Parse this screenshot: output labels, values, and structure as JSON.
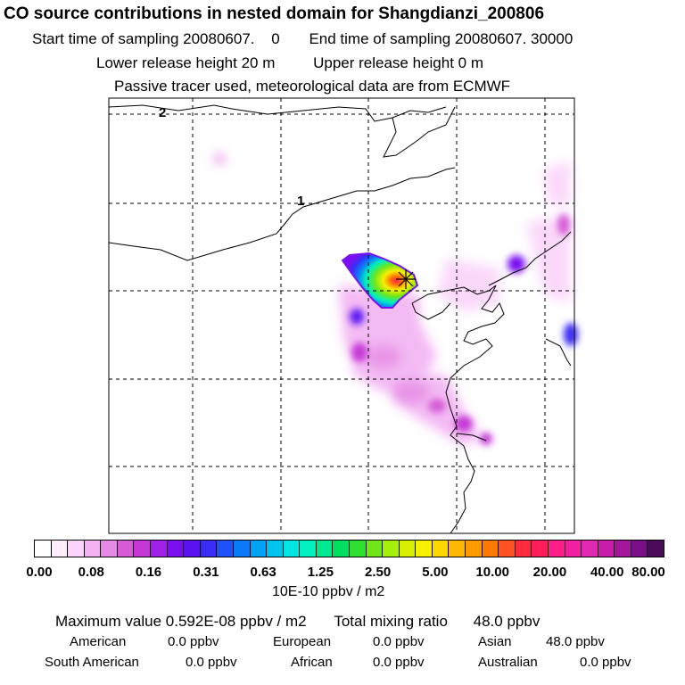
{
  "header": {
    "title": "CO  source contributions in nested domain for Shangdianzi_200806",
    "start_label": "Start time of sampling",
    "start_value": "20080607.",
    "start_hhmmss": "0",
    "end_label": "End time of sampling",
    "end_value": "20080607. 30000",
    "lower_label": "Lower release height",
    "lower_value": "20 m",
    "upper_label": "Upper release height",
    "upper_value": "0 m",
    "note": "Passive tracer used, meteorological data are from ECMWF"
  },
  "map": {
    "border_labels": [
      "2",
      "1"
    ],
    "receptor_marker": "receptor-star"
  },
  "colorbar": {
    "colors": [
      "#ffffff",
      "#fdeefd",
      "#fad4fa",
      "#f3b3f3",
      "#e68ae6",
      "#d55cd5",
      "#c437d6",
      "#a020e6",
      "#7a10f0",
      "#5a12f2",
      "#3a2cf5",
      "#1f50f8",
      "#0a7af8",
      "#00a2f5",
      "#00c4ec",
      "#00e6e0",
      "#00f0c0",
      "#00e890",
      "#00e060",
      "#30e030",
      "#6ee61a",
      "#a6ef0a",
      "#d6f000",
      "#f7f000",
      "#ffd800",
      "#ffb800",
      "#ff9a00",
      "#ff7a00",
      "#ff5220",
      "#ff2a3a",
      "#ff1e5a",
      "#ff1e8a",
      "#f020a2",
      "#e028b0",
      "#c81eaa",
      "#a4169c",
      "#7a0e86",
      "#4a0a58"
    ],
    "ticks": [
      "0.00",
      "0.08",
      "0.16",
      "0.31",
      "0.63",
      "1.25",
      "2.50",
      "5.00",
      "10.00",
      "20.00",
      "40.00",
      "80.00"
    ],
    "units": "10E-10 ppbv / m2"
  },
  "summary": {
    "max_label": "Maximum value",
    "max_value": "0.592E-08 ppbv / m2",
    "total_label": "Total mixing ratio",
    "total_value": "48.0 ppbv",
    "regions": [
      {
        "name": "American",
        "value": "0.0 ppbv"
      },
      {
        "name": "European",
        "value": "0.0 ppbv"
      },
      {
        "name": "Asian",
        "value": "48.0 ppbv"
      },
      {
        "name": "South American",
        "value": "0.0 ppbv"
      },
      {
        "name": "African",
        "value": "0.0 ppbv"
      },
      {
        "name": "Australian",
        "value": "0.0 ppbv"
      }
    ]
  }
}
